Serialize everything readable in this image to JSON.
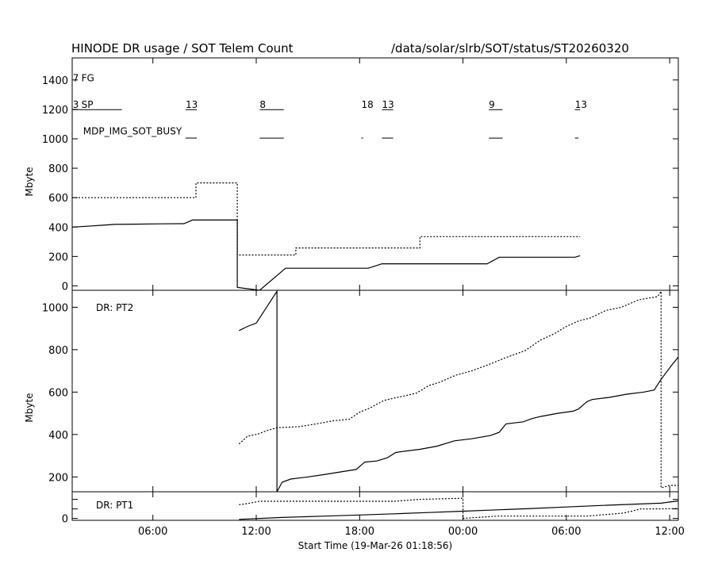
{
  "chart_data": {
    "type": "line",
    "title": "HINODE DR usage / SOT Telem Count",
    "path": "/data/solar/slrb/SOT/status/ST20260320",
    "xlabel": "Start Time (19-Mar-26 01:18:56)",
    "xlim": [
      1.316,
      36.5
    ],
    "x_ticks": [
      {
        "t": 6,
        "label": "06:00"
      },
      {
        "t": 12,
        "label": "12:00"
      },
      {
        "t": 18,
        "label": "18:00"
      },
      {
        "t": 24,
        "label": "00:00"
      },
      {
        "t": 30,
        "label": "06:00"
      },
      {
        "t": 36,
        "label": "12:00"
      }
    ],
    "panels": [
      {
        "id": "telem",
        "ylabel": "Mbyte",
        "ylim": [
          -30,
          1550
        ],
        "y_ticks": [
          0,
          200,
          400,
          600,
          800,
          1000,
          1200,
          1400
        ],
        "annotations": [
          {
            "text": "7",
            "t": 1.35,
            "y": 1390
          },
          {
            "text": "FG",
            "t": 1.85,
            "y": 1390
          },
          {
            "text": "3",
            "t": 1.35,
            "y": 1210
          },
          {
            "text": "SP",
            "t": 1.85,
            "y": 1210
          },
          {
            "text": "13",
            "t": 7.9,
            "y": 1210
          },
          {
            "text": "8",
            "t": 12.2,
            "y": 1210
          },
          {
            "text": "18",
            "t": 18.1,
            "y": 1210
          },
          {
            "text": "13",
            "t": 19.3,
            "y": 1210
          },
          {
            "text": "9",
            "t": 25.5,
            "y": 1210
          },
          {
            "text": "13",
            "t": 30.5,
            "y": 1210
          },
          {
            "text": "MDP_IMG_SOT_BUSY",
            "t": 1.95,
            "y": 1030
          }
        ],
        "busy_segments": [
          {
            "t0": 1.35,
            "t1": 4.2,
            "y": 1198
          },
          {
            "t0": 7.9,
            "t1": 8.55,
            "y": 1198
          },
          {
            "t0": 12.2,
            "t1": 13.6,
            "y": 1198
          },
          {
            "t0": 19.3,
            "t1": 19.95,
            "y": 1198
          },
          {
            "t0": 25.5,
            "t1": 26.3,
            "y": 1198
          },
          {
            "t0": 30.5,
            "t1": 30.8,
            "y": 1198
          },
          {
            "t0": 7.9,
            "t1": 8.55,
            "y": 1005
          },
          {
            "t0": 12.2,
            "t1": 13.6,
            "y": 1005
          },
          {
            "t0": 18.1,
            "t1": 18.2,
            "y": 1005
          },
          {
            "t0": 19.3,
            "t1": 19.95,
            "y": 1005
          },
          {
            "t0": 25.5,
            "t1": 26.3,
            "y": 1005
          },
          {
            "t0": 30.5,
            "t1": 30.7,
            "y": 1005
          }
        ],
        "series": [
          {
            "style": "solid",
            "points": [
              [
                1.316,
                400
              ],
              [
                2.5,
                408
              ],
              [
                3.8,
                418
              ],
              [
                5,
                420
              ],
              [
                6.5,
                422
              ],
              [
                7.8,
                423
              ],
              [
                8.3,
                448
              ],
              [
                10.9,
                448
              ],
              [
                10.9,
                -10
              ],
              [
                12.2,
                -30
              ],
              [
                13.7,
                120
              ],
              [
                18.5,
                120
              ],
              [
                19.3,
                150
              ],
              [
                25.4,
                150
              ],
              [
                26.1,
                195
              ],
              [
                30.5,
                195
              ],
              [
                30.8,
                205
              ]
            ]
          },
          {
            "style": "dotted",
            "points": [
              [
                1.316,
                600
              ],
              [
                8.5,
                600
              ],
              [
                8.5,
                700
              ],
              [
                10.9,
                700
              ],
              [
                10.9,
                210
              ],
              [
                14.3,
                210
              ],
              [
                14.3,
                258
              ],
              [
                21.5,
                258
              ],
              [
                21.5,
                335
              ],
              [
                30.8,
                335
              ]
            ]
          }
        ]
      },
      {
        "id": "pt2",
        "label": "DR: PT2",
        "ylabel": "Mbyte",
        "ylim": [
          130,
          1080
        ],
        "y_ticks": [
          200,
          400,
          600,
          800,
          1000
        ],
        "series": [
          {
            "style": "solid",
            "points": [
              [
                11,
                890
              ],
              [
                11.5,
                910
              ],
              [
                12,
                925
              ],
              [
                13.2,
                1075
              ],
              [
                13.2,
                130
              ],
              [
                13.5,
                175
              ],
              [
                14,
                190
              ],
              [
                15,
                200
              ],
              [
                16,
                212
              ],
              [
                17,
                225
              ],
              [
                17.8,
                235
              ],
              [
                18.3,
                270
              ],
              [
                19,
                275
              ],
              [
                19.6,
                290
              ],
              [
                20.1,
                315
              ],
              [
                20.5,
                320
              ],
              [
                21.5,
                330
              ],
              [
                22.5,
                345
              ],
              [
                23.5,
                370
              ],
              [
                24.5,
                380
              ],
              [
                25.6,
                395
              ],
              [
                26.1,
                410
              ],
              [
                26.5,
                450
              ],
              [
                27.5,
                460
              ],
              [
                28,
                475
              ],
              [
                28.5,
                485
              ],
              [
                29.5,
                500
              ],
              [
                30.4,
                510
              ],
              [
                30.7,
                520
              ],
              [
                31.2,
                555
              ],
              [
                31.5,
                565
              ],
              [
                32.5,
                575
              ],
              [
                33.5,
                590
              ],
              [
                34.5,
                600
              ],
              [
                35.1,
                610
              ],
              [
                35.5,
                660
              ],
              [
                36.1,
                725
              ],
              [
                36.5,
                765
              ]
            ]
          },
          {
            "style": "dotted",
            "points": [
              [
                11,
                355
              ],
              [
                11.5,
                392
              ],
              [
                12.1,
                402
              ],
              [
                12.6,
                418
              ],
              [
                13.2,
                432
              ],
              [
                14.5,
                437
              ],
              [
                15.5,
                450
              ],
              [
                16.5,
                465
              ],
              [
                17.4,
                472
              ],
              [
                18,
                505
              ],
              [
                18.6,
                525
              ],
              [
                19.4,
                560
              ],
              [
                19.9,
                570
              ],
              [
                20.5,
                580
              ],
              [
                21.3,
                595
              ],
              [
                22,
                630
              ],
              [
                22.6,
                645
              ],
              [
                23.6,
                680
              ],
              [
                24.5,
                700
              ],
              [
                25.5,
                730
              ],
              [
                26.4,
                760
              ],
              [
                27.6,
                795
              ],
              [
                28.5,
                845
              ],
              [
                29.3,
                875
              ],
              [
                30,
                910
              ],
              [
                30.7,
                935
              ],
              [
                31.4,
                950
              ],
              [
                32.3,
                985
              ],
              [
                33.2,
                1000
              ],
              [
                34.2,
                1035
              ],
              [
                35.3,
                1050
              ],
              [
                35.5,
                1075
              ],
              [
                35.5,
                148
              ],
              [
                36,
                160
              ],
              [
                36.5,
                160
              ]
            ]
          }
        ]
      },
      {
        "id": "pt1",
        "label": "DR: PT1",
        "ylim": [
          -10,
          140
        ],
        "y_ticks": [
          0,
          50,
          100
        ],
        "y_tick_labels_shown": [
          0
        ],
        "series": [
          {
            "style": "solid",
            "points": [
              [
                11,
                -5
              ],
              [
                13.5,
                5
              ],
              [
                16,
                12
              ],
              [
                18,
                18
              ],
              [
                20,
                24
              ],
              [
                22,
                31
              ],
              [
                24,
                38
              ],
              [
                26,
                45
              ],
              [
                28,
                52
              ],
              [
                30,
                60
              ],
              [
                32,
                68
              ],
              [
                34,
                75
              ],
              [
                35.5,
                80
              ],
              [
                36.5,
                92
              ]
            ]
          },
          {
            "style": "dotted",
            "points": [
              [
                11,
                72
              ],
              [
                11.5,
                78
              ],
              [
                12.2,
                90
              ],
              [
                20,
                90
              ],
              [
                21.5,
                100
              ],
              [
                24,
                106
              ],
              [
                24,
                0
              ],
              [
                26,
                12
              ],
              [
                31.2,
                12
              ],
              [
                33.3,
                28
              ],
              [
                33.8,
                38
              ],
              [
                34.3,
                50
              ],
              [
                35.5,
                50
              ],
              [
                36.5,
                52
              ]
            ]
          }
        ]
      }
    ]
  }
}
